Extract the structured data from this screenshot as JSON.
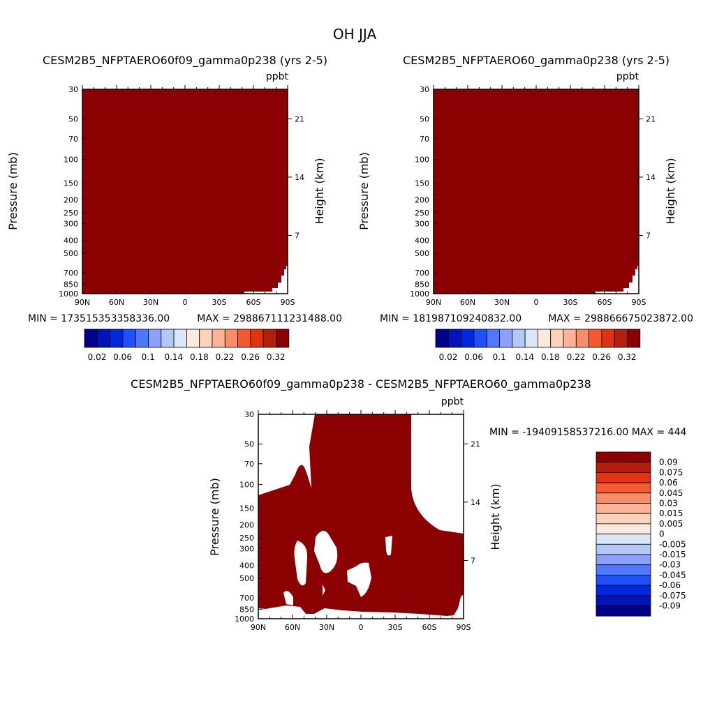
{
  "figure": {
    "title": "OH JJA"
  },
  "colors": {
    "fill": "#8b0000",
    "bg": "#ffffff",
    "diverging": [
      "#00008b",
      "#0014b8",
      "#0028e0",
      "#1e50ff",
      "#5078ff",
      "#8ca0ff",
      "#b4c8f5",
      "#d8e6f5",
      "#fbe9df",
      "#fcd2bc",
      "#fbb296",
      "#f98d6b",
      "#f6592f",
      "#e13214",
      "#b41e0a",
      "#8b0000"
    ]
  },
  "chart_data": [
    {
      "type": "heatmap",
      "id": "left",
      "title": "CESM2B5_NFPTAERO60f09_gamma0p238 (yrs 2-5)",
      "unit": "ppbt",
      "xlabel": "",
      "ylabel": "Pressure (mb)",
      "y2label": "Height (km)",
      "xticks": [
        "90N",
        "60N",
        "30N",
        "0",
        "30S",
        "60S",
        "90S"
      ],
      "yticks": [
        "30",
        "50",
        "70",
        "100",
        "150",
        "200",
        "250",
        "300",
        "400",
        "500",
        "700",
        "850",
        "1000"
      ],
      "y2ticks": [
        "21",
        "14",
        "7"
      ],
      "min_text": "MIN = 173515353358336.00",
      "max_text": "MAX = 298867111231488.00",
      "colorbar": {
        "orientation": "horizontal",
        "levels": [
          0.02,
          0.04,
          0.06,
          0.08,
          0.1,
          0.12,
          0.14,
          0.16,
          0.18,
          0.2,
          0.22,
          0.24,
          0.26,
          0.28,
          0.3,
          0.32
        ],
        "labels": [
          "0.02",
          "0.06",
          "0.1",
          "0.14",
          "0.18",
          "0.22",
          "0.26",
          "0.32"
        ]
      }
    },
    {
      "type": "heatmap",
      "id": "right",
      "title": "CESM2B5_NFPTAERO60_gamma0p238 (yrs 2-5)",
      "unit": "ppbt",
      "xlabel": "",
      "ylabel": "Pressure (mb)",
      "y2label": "Height (km)",
      "xticks": [
        "90N",
        "60N",
        "30N",
        "0",
        "30S",
        "60S",
        "90S"
      ],
      "yticks": [
        "30",
        "50",
        "70",
        "100",
        "150",
        "200",
        "250",
        "300",
        "400",
        "500",
        "700",
        "850",
        "1000"
      ],
      "y2ticks": [
        "21",
        "14",
        "7"
      ],
      "min_text": "MIN = 181987109240832.00",
      "max_text": "MAX = 298866675023872.00",
      "colorbar": {
        "orientation": "horizontal",
        "levels": [
          0.02,
          0.04,
          0.06,
          0.08,
          0.1,
          0.12,
          0.14,
          0.16,
          0.18,
          0.2,
          0.22,
          0.24,
          0.26,
          0.28,
          0.3,
          0.32
        ],
        "labels": [
          "0.02",
          "0.06",
          "0.1",
          "0.14",
          "0.18",
          "0.22",
          "0.26",
          "0.32"
        ]
      }
    },
    {
      "type": "heatmap",
      "id": "diff",
      "title": "CESM2B5_NFPTAERO60f09_gamma0p238 - CESM2B5_NFPTAERO60_gamma0p238",
      "unit": "ppbt",
      "xlabel": "",
      "ylabel": "Pressure (mb)",
      "y2label": "Height (km)",
      "xticks": [
        "90N",
        "60N",
        "30N",
        "0",
        "30S",
        "60S",
        "90S"
      ],
      "yticks": [
        "30",
        "50",
        "70",
        "100",
        "150",
        "200",
        "250",
        "300",
        "400",
        "500",
        "700",
        "850",
        "1000"
      ],
      "y2ticks": [
        "21",
        "14",
        "7"
      ],
      "minmax_text": "MIN = -19409158537216.00   MAX = 444",
      "colorbar": {
        "orientation": "vertical",
        "labels": [
          "0.09",
          "0.075",
          "0.06",
          "0.045",
          "0.03",
          "0.015",
          "0.005",
          "0",
          "-0.005",
          "-0.015",
          "-0.03",
          "-0.045",
          "-0.06",
          "-0.075",
          "-0.09"
        ]
      }
    }
  ]
}
